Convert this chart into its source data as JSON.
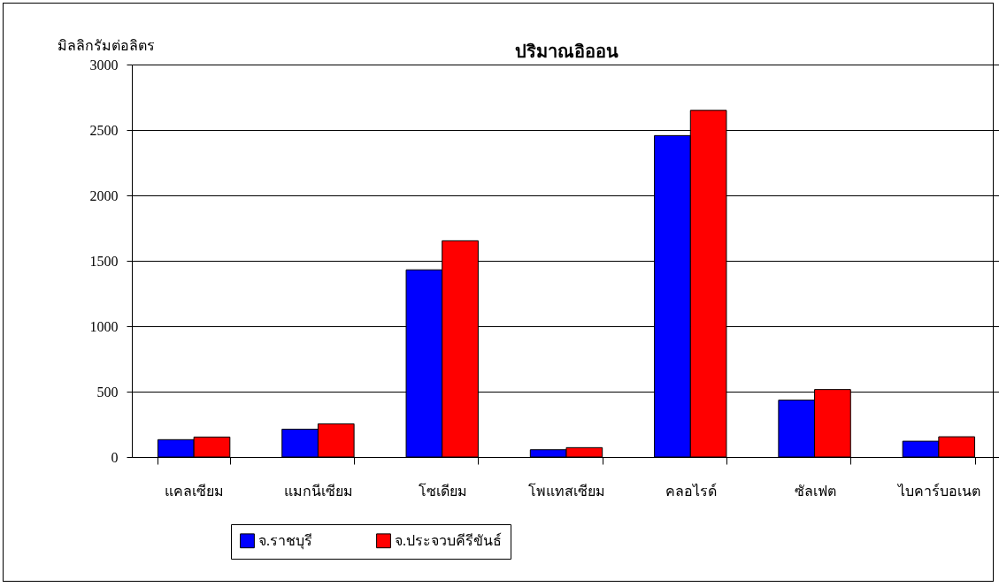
{
  "chart_data": {
    "type": "bar",
    "title": "ปริมาณอิออน",
    "ylabel": "มิลลิกรัมต่อลิตร",
    "categories": [
      "แคลเซียม",
      "แมกนีเซียม",
      "โซเดียม",
      "โพแทสเซียม",
      "คลอไรด์",
      "ซัลเฟต",
      "ไบคาร์บอเนต"
    ],
    "series": [
      {
        "name": "จ.ราชบุรี",
        "color": "#0000ff",
        "values": [
          133,
          213,
          1431,
          56,
          2457,
          435,
          121
        ]
      },
      {
        "name": "จ.ประจวบคีรีขันธ์",
        "color": "#ff0000",
        "values": [
          153,
          254,
          1653,
          72,
          2650,
          516,
          155
        ]
      }
    ],
    "ylim": [
      0,
      3000
    ],
    "yticks": [
      0,
      500,
      1000,
      1500,
      2000,
      2500,
      3000
    ],
    "grid": "y",
    "legend": "bottom"
  }
}
